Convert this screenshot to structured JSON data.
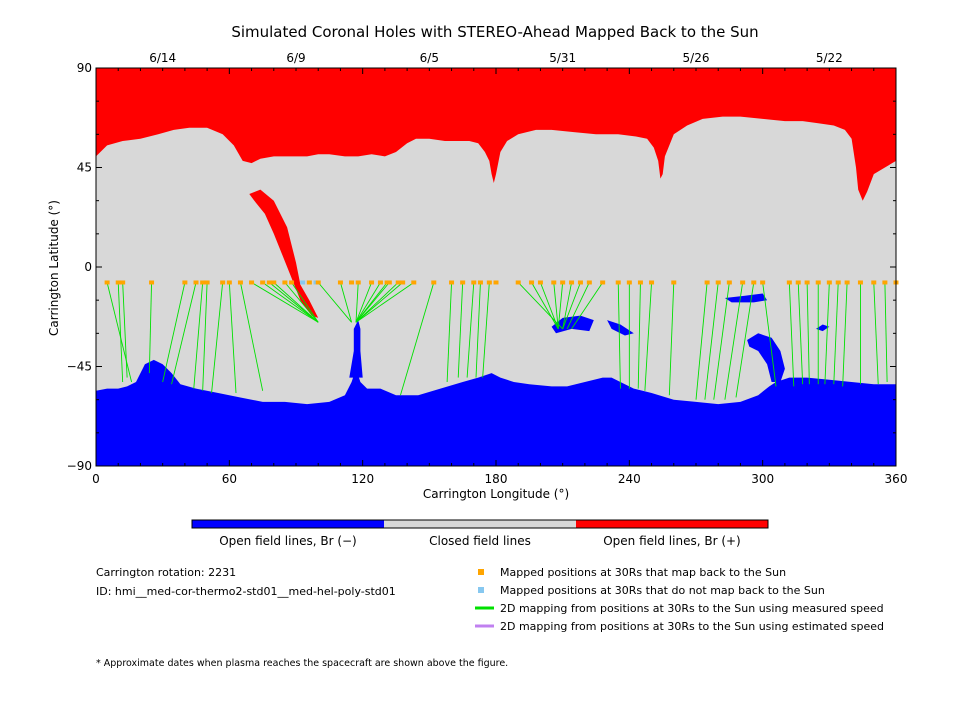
{
  "chart_data": {
    "type": "map",
    "title": "Simulated Coronal Holes with STEREO-Ahead Mapped Back to the Sun",
    "xlabel": "Carrington Longitude (°)",
    "ylabel": "Carrington Latitude (°)",
    "xlim": [
      0,
      360
    ],
    "ylim": [
      -90,
      90
    ],
    "x_ticks": [
      0,
      60,
      120,
      180,
      240,
      300,
      360
    ],
    "y_ticks": [
      -90,
      -45,
      0,
      45,
      90
    ],
    "top_axis_dates": [
      {
        "label": "6/14",
        "lon": 30
      },
      {
        "label": "6/9",
        "lon": 90
      },
      {
        "label": "6/5",
        "lon": 150
      },
      {
        "label": "5/31",
        "lon": 210
      },
      {
        "label": "5/26",
        "lon": 270
      },
      {
        "label": "5/22",
        "lon": 330
      }
    ],
    "regions": [
      {
        "name": "Open field lines, Br (−)",
        "color": "#0000ff"
      },
      {
        "name": "Closed field lines",
        "color": "#d8d8d8"
      },
      {
        "name": "Open field lines, Br (+)",
        "color": "#ff0000"
      }
    ],
    "mapped_latitude": -7,
    "mapped_longitudes": [
      5,
      10,
      12,
      25,
      40,
      45,
      48,
      50,
      57,
      60,
      65,
      70,
      75,
      78,
      80,
      85,
      88,
      96,
      100,
      110,
      115,
      118,
      124,
      128,
      131,
      132,
      136,
      138,
      143,
      152,
      160,
      165,
      170,
      173,
      177,
      180,
      190,
      196,
      200,
      206,
      210,
      214,
      218,
      222,
      228,
      235,
      240,
      245,
      250,
      260,
      275,
      280,
      285,
      291,
      296,
      300,
      312,
      316,
      320,
      325,
      330,
      334,
      338,
      344,
      350,
      355,
      360
    ],
    "unmapped_longitudes": [
      93,
      96,
      99
    ],
    "mapping_lines": [
      {
        "from": [
          5,
          -7
        ],
        "to": [
          16,
          -52
        ]
      },
      {
        "from": [
          10,
          -7
        ],
        "to": [
          12,
          -52
        ]
      },
      {
        "from": [
          12,
          -7
        ],
        "to": [
          14,
          -50
        ]
      },
      {
        "from": [
          25,
          -7
        ],
        "to": [
          24,
          -48
        ]
      },
      {
        "from": [
          40,
          -7
        ],
        "to": [
          30,
          -52
        ]
      },
      {
        "from": [
          45,
          -7
        ],
        "to": [
          34,
          -53
        ]
      },
      {
        "from": [
          48,
          -7
        ],
        "to": [
          44,
          -55
        ]
      },
      {
        "from": [
          50,
          -7
        ],
        "to": [
          48,
          -56
        ]
      },
      {
        "from": [
          57,
          -7
        ],
        "to": [
          52,
          -57
        ]
      },
      {
        "from": [
          60,
          -7
        ],
        "to": [
          63,
          -57
        ]
      },
      {
        "from": [
          65,
          -7
        ],
        "to": [
          75,
          -56
        ]
      },
      {
        "from": [
          70,
          -7
        ],
        "to": [
          100,
          -25
        ]
      },
      {
        "from": [
          75,
          -7
        ],
        "to": [
          100,
          -25
        ]
      },
      {
        "from": [
          78,
          -7
        ],
        "to": [
          100,
          -25
        ]
      },
      {
        "from": [
          80,
          -7
        ],
        "to": [
          100,
          -25
        ]
      },
      {
        "from": [
          85,
          -7
        ],
        "to": [
          100,
          -25
        ]
      },
      {
        "from": [
          88,
          -7
        ],
        "to": [
          100,
          -25
        ]
      },
      {
        "from": [
          100,
          -7
        ],
        "to": [
          115,
          -25
        ]
      },
      {
        "from": [
          110,
          -7
        ],
        "to": [
          115,
          -25
        ]
      },
      {
        "from": [
          118,
          -7
        ],
        "to": [
          117,
          -25
        ]
      },
      {
        "from": [
          124,
          -7
        ],
        "to": [
          117,
          -25
        ]
      },
      {
        "from": [
          128,
          -7
        ],
        "to": [
          117,
          -25
        ]
      },
      {
        "from": [
          131,
          -7
        ],
        "to": [
          117,
          -25
        ]
      },
      {
        "from": [
          132,
          -7
        ],
        "to": [
          117,
          -25
        ]
      },
      {
        "from": [
          136,
          -7
        ],
        "to": [
          117,
          -25
        ]
      },
      {
        "from": [
          138,
          -7
        ],
        "to": [
          117,
          -25
        ]
      },
      {
        "from": [
          143,
          -7
        ],
        "to": [
          117,
          -25
        ]
      },
      {
        "from": [
          152,
          -7
        ],
        "to": [
          137,
          -58
        ]
      },
      {
        "from": [
          160,
          -7
        ],
        "to": [
          158,
          -52
        ]
      },
      {
        "from": [
          165,
          -7
        ],
        "to": [
          163,
          -50
        ]
      },
      {
        "from": [
          170,
          -7
        ],
        "to": [
          167,
          -50
        ]
      },
      {
        "from": [
          173,
          -7
        ],
        "to": [
          171,
          -50
        ]
      },
      {
        "from": [
          177,
          -7
        ],
        "to": [
          174,
          -50
        ]
      },
      {
        "from": [
          190,
          -7
        ],
        "to": [
          210,
          -28
        ]
      },
      {
        "from": [
          196,
          -7
        ],
        "to": [
          208,
          -28
        ]
      },
      {
        "from": [
          200,
          -7
        ],
        "to": [
          208,
          -28
        ]
      },
      {
        "from": [
          206,
          -7
        ],
        "to": [
          208,
          -28
        ]
      },
      {
        "from": [
          210,
          -7
        ],
        "to": [
          208,
          -28
        ]
      },
      {
        "from": [
          214,
          -7
        ],
        "to": [
          210,
          -28
        ]
      },
      {
        "from": [
          218,
          -7
        ],
        "to": [
          210,
          -28
        ]
      },
      {
        "from": [
          222,
          -7
        ],
        "to": [
          212,
          -28
        ]
      },
      {
        "from": [
          228,
          -7
        ],
        "to": [
          214,
          -28
        ]
      },
      {
        "from": [
          235,
          -7
        ],
        "to": [
          236,
          -55
        ]
      },
      {
        "from": [
          240,
          -7
        ],
        "to": [
          240,
          -55
        ]
      },
      {
        "from": [
          245,
          -7
        ],
        "to": [
          244,
          -55
        ]
      },
      {
        "from": [
          250,
          -7
        ],
        "to": [
          247,
          -56
        ]
      },
      {
        "from": [
          260,
          -7
        ],
        "to": [
          258,
          -58
        ]
      },
      {
        "from": [
          275,
          -7
        ],
        "to": [
          270,
          -60
        ]
      },
      {
        "from": [
          280,
          -7
        ],
        "to": [
          274,
          -60
        ]
      },
      {
        "from": [
          285,
          -7
        ],
        "to": [
          278,
          -60
        ]
      },
      {
        "from": [
          291,
          -7
        ],
        "to": [
          283,
          -60
        ]
      },
      {
        "from": [
          296,
          -7
        ],
        "to": [
          288,
          -59
        ]
      },
      {
        "from": [
          300,
          -7
        ],
        "to": [
          306,
          -54
        ]
      },
      {
        "from": [
          312,
          -7
        ],
        "to": [
          314,
          -54
        ]
      },
      {
        "from": [
          316,
          -7
        ],
        "to": [
          318,
          -53
        ]
      },
      {
        "from": [
          320,
          -7
        ],
        "to": [
          321,
          -53
        ]
      },
      {
        "from": [
          325,
          -7
        ],
        "to": [
          325,
          -53
        ]
      },
      {
        "from": [
          330,
          -7
        ],
        "to": [
          328,
          -53
        ]
      },
      {
        "from": [
          334,
          -7
        ],
        "to": [
          332,
          -53
        ]
      },
      {
        "from": [
          338,
          -7
        ],
        "to": [
          336,
          -54
        ]
      },
      {
        "from": [
          344,
          -7
        ],
        "to": [
          344,
          -53
        ]
      },
      {
        "from": [
          350,
          -7
        ],
        "to": [
          352,
          -53
        ]
      },
      {
        "from": [
          355,
          -7
        ],
        "to": [
          356,
          -52
        ]
      }
    ],
    "legend": [
      {
        "label": "Mapped positions at 30Rs that map back to the Sun",
        "marker": "square",
        "color": "#ffa500"
      },
      {
        "label": "Mapped positions at 30Rs that do not map back to the Sun",
        "marker": "square",
        "color": "#87c8f0"
      },
      {
        "label": "2D mapping from positions at 30Rs to the Sun using measured speed",
        "marker": "line",
        "color": "#00e000"
      },
      {
        "label": "2D mapping from positions at 30Rs to the Sun using estimated speed",
        "marker": "line",
        "color": "#c080f0"
      }
    ],
    "info": {
      "rotation": "Carrington rotation: 2231",
      "id": "ID: hmi__med-cor-thermo2-std01__med-hel-poly-std01"
    },
    "footnote": "* Approximate dates when plasma reaches the spacecraft are shown above the figure."
  }
}
